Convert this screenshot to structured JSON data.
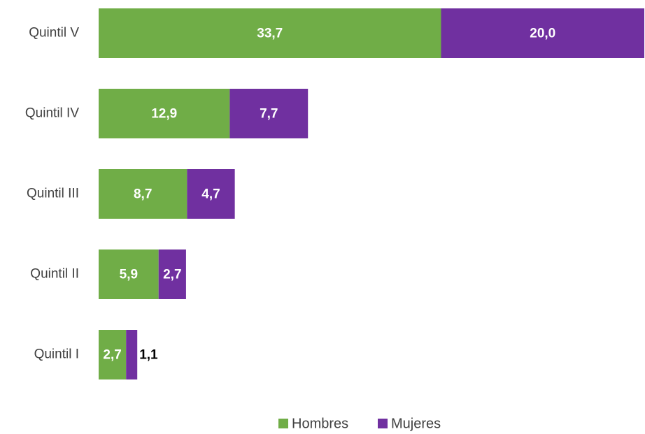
{
  "chart_data": {
    "type": "stacked-bar-horizontal",
    "categories": [
      "Quintil V",
      "Quintil IV",
      "Quintil III",
      "Quintil II",
      "Quintil I"
    ],
    "series": [
      {
        "name": "Hombres",
        "color": "#70ad47",
        "values": [
          33.7,
          12.9,
          8.7,
          5.9,
          2.7
        ],
        "value_labels": [
          "33,7",
          "12,9",
          "8,7",
          "5,9",
          "2,7"
        ]
      },
      {
        "name": "Mujeres",
        "color": "#7030a0",
        "values": [
          20.0,
          7.7,
          4.7,
          2.7,
          1.1
        ],
        "value_labels": [
          "20,0",
          "7,7",
          "4,7",
          "2,7",
          "1,1"
        ]
      }
    ],
    "legend": "bottom"
  }
}
